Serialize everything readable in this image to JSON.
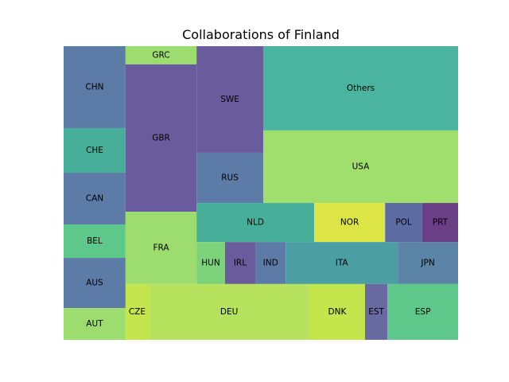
{
  "chart_data": {
    "type": "treemap",
    "title": "Collaborations of Finland",
    "cells": [
      {
        "label": "CHN",
        "color": "#5c7ba6",
        "x0": 0.0,
        "y0": 0.0,
        "x1": 0.157,
        "y1": 0.279
      },
      {
        "label": "CHE",
        "color": "#47af99",
        "x0": 0.0,
        "y0": 0.279,
        "x1": 0.157,
        "y1": 0.431
      },
      {
        "label": "CAN",
        "color": "#5c7ba6",
        "x0": 0.0,
        "y0": 0.431,
        "x1": 0.157,
        "y1": 0.607
      },
      {
        "label": "BEL",
        "color": "#5ec88b",
        "x0": 0.0,
        "y0": 0.607,
        "x1": 0.157,
        "y1": 0.721
      },
      {
        "label": "AUS",
        "color": "#5c7ba6",
        "x0": 0.0,
        "y0": 0.721,
        "x1": 0.157,
        "y1": 0.892
      },
      {
        "label": "AUT",
        "color": "#9ddd70",
        "x0": 0.0,
        "y0": 0.892,
        "x1": 0.157,
        "y1": 1.0
      },
      {
        "label": "GRC",
        "color": "#9ddd70",
        "x0": 0.157,
        "y0": 0.0,
        "x1": 0.337,
        "y1": 0.062
      },
      {
        "label": "GBR",
        "color": "#6a5c9c",
        "x0": 0.157,
        "y0": 0.062,
        "x1": 0.337,
        "y1": 0.564
      },
      {
        "label": "FRA",
        "color": "#9ddd70",
        "x0": 0.157,
        "y0": 0.564,
        "x1": 0.337,
        "y1": 0.81
      },
      {
        "label": "SWE",
        "color": "#6a5c9c",
        "x0": 0.337,
        "y0": 0.0,
        "x1": 0.506,
        "y1": 0.363
      },
      {
        "label": "RUS",
        "color": "#5c7ba6",
        "x0": 0.337,
        "y0": 0.363,
        "x1": 0.506,
        "y1": 0.534
      },
      {
        "label": "Others",
        "color": "#4bb4a0",
        "x0": 0.506,
        "y0": 0.0,
        "x1": 1.0,
        "y1": 0.287
      },
      {
        "label": "USA",
        "color": "#a0de6e",
        "x0": 0.506,
        "y0": 0.287,
        "x1": 1.0,
        "y1": 0.534
      },
      {
        "label": "NLD",
        "color": "#47af99",
        "x0": 0.337,
        "y0": 0.534,
        "x1": 0.635,
        "y1": 0.667
      },
      {
        "label": "NOR",
        "color": "#dde546",
        "x0": 0.635,
        "y0": 0.534,
        "x1": 0.815,
        "y1": 0.667
      },
      {
        "label": "POL",
        "color": "#5c6ca2",
        "x0": 0.815,
        "y0": 0.534,
        "x1": 0.909,
        "y1": 0.667
      },
      {
        "label": "PRT",
        "color": "#6a3f86",
        "x0": 0.909,
        "y0": 0.534,
        "x1": 1.0,
        "y1": 0.667
      },
      {
        "label": "HUN",
        "color": "#7dd37a",
        "x0": 0.337,
        "y0": 0.667,
        "x1": 0.409,
        "y1": 0.81
      },
      {
        "label": "IRL",
        "color": "#6a5c9c",
        "x0": 0.409,
        "y0": 0.667,
        "x1": 0.486,
        "y1": 0.81
      },
      {
        "label": "IND",
        "color": "#5c7ba6",
        "x0": 0.486,
        "y0": 0.667,
        "x1": 0.563,
        "y1": 0.81
      },
      {
        "label": "ITA",
        "color": "#4b9ea2",
        "x0": 0.563,
        "y0": 0.667,
        "x1": 0.847,
        "y1": 0.81
      },
      {
        "label": "JPN",
        "color": "#5c84a6",
        "x0": 0.847,
        "y0": 0.667,
        "x1": 1.0,
        "y1": 0.81
      },
      {
        "label": "CZE",
        "color": "#c4e54c",
        "x0": 0.157,
        "y0": 0.81,
        "x1": 0.216,
        "y1": 1.0
      },
      {
        "label": "DEU",
        "color": "#b6e25e",
        "x0": 0.216,
        "y0": 0.81,
        "x1": 0.623,
        "y1": 1.0
      },
      {
        "label": "DNK",
        "color": "#c4e54c",
        "x0": 0.623,
        "y0": 0.81,
        "x1": 0.764,
        "y1": 1.0
      },
      {
        "label": "EST",
        "color": "#6a6aa3",
        "x0": 0.764,
        "y0": 0.81,
        "x1": 0.821,
        "y1": 1.0
      },
      {
        "label": "ESP",
        "color": "#5ec88b",
        "x0": 0.821,
        "y0": 0.81,
        "x1": 1.0,
        "y1": 1.0
      }
    ]
  }
}
